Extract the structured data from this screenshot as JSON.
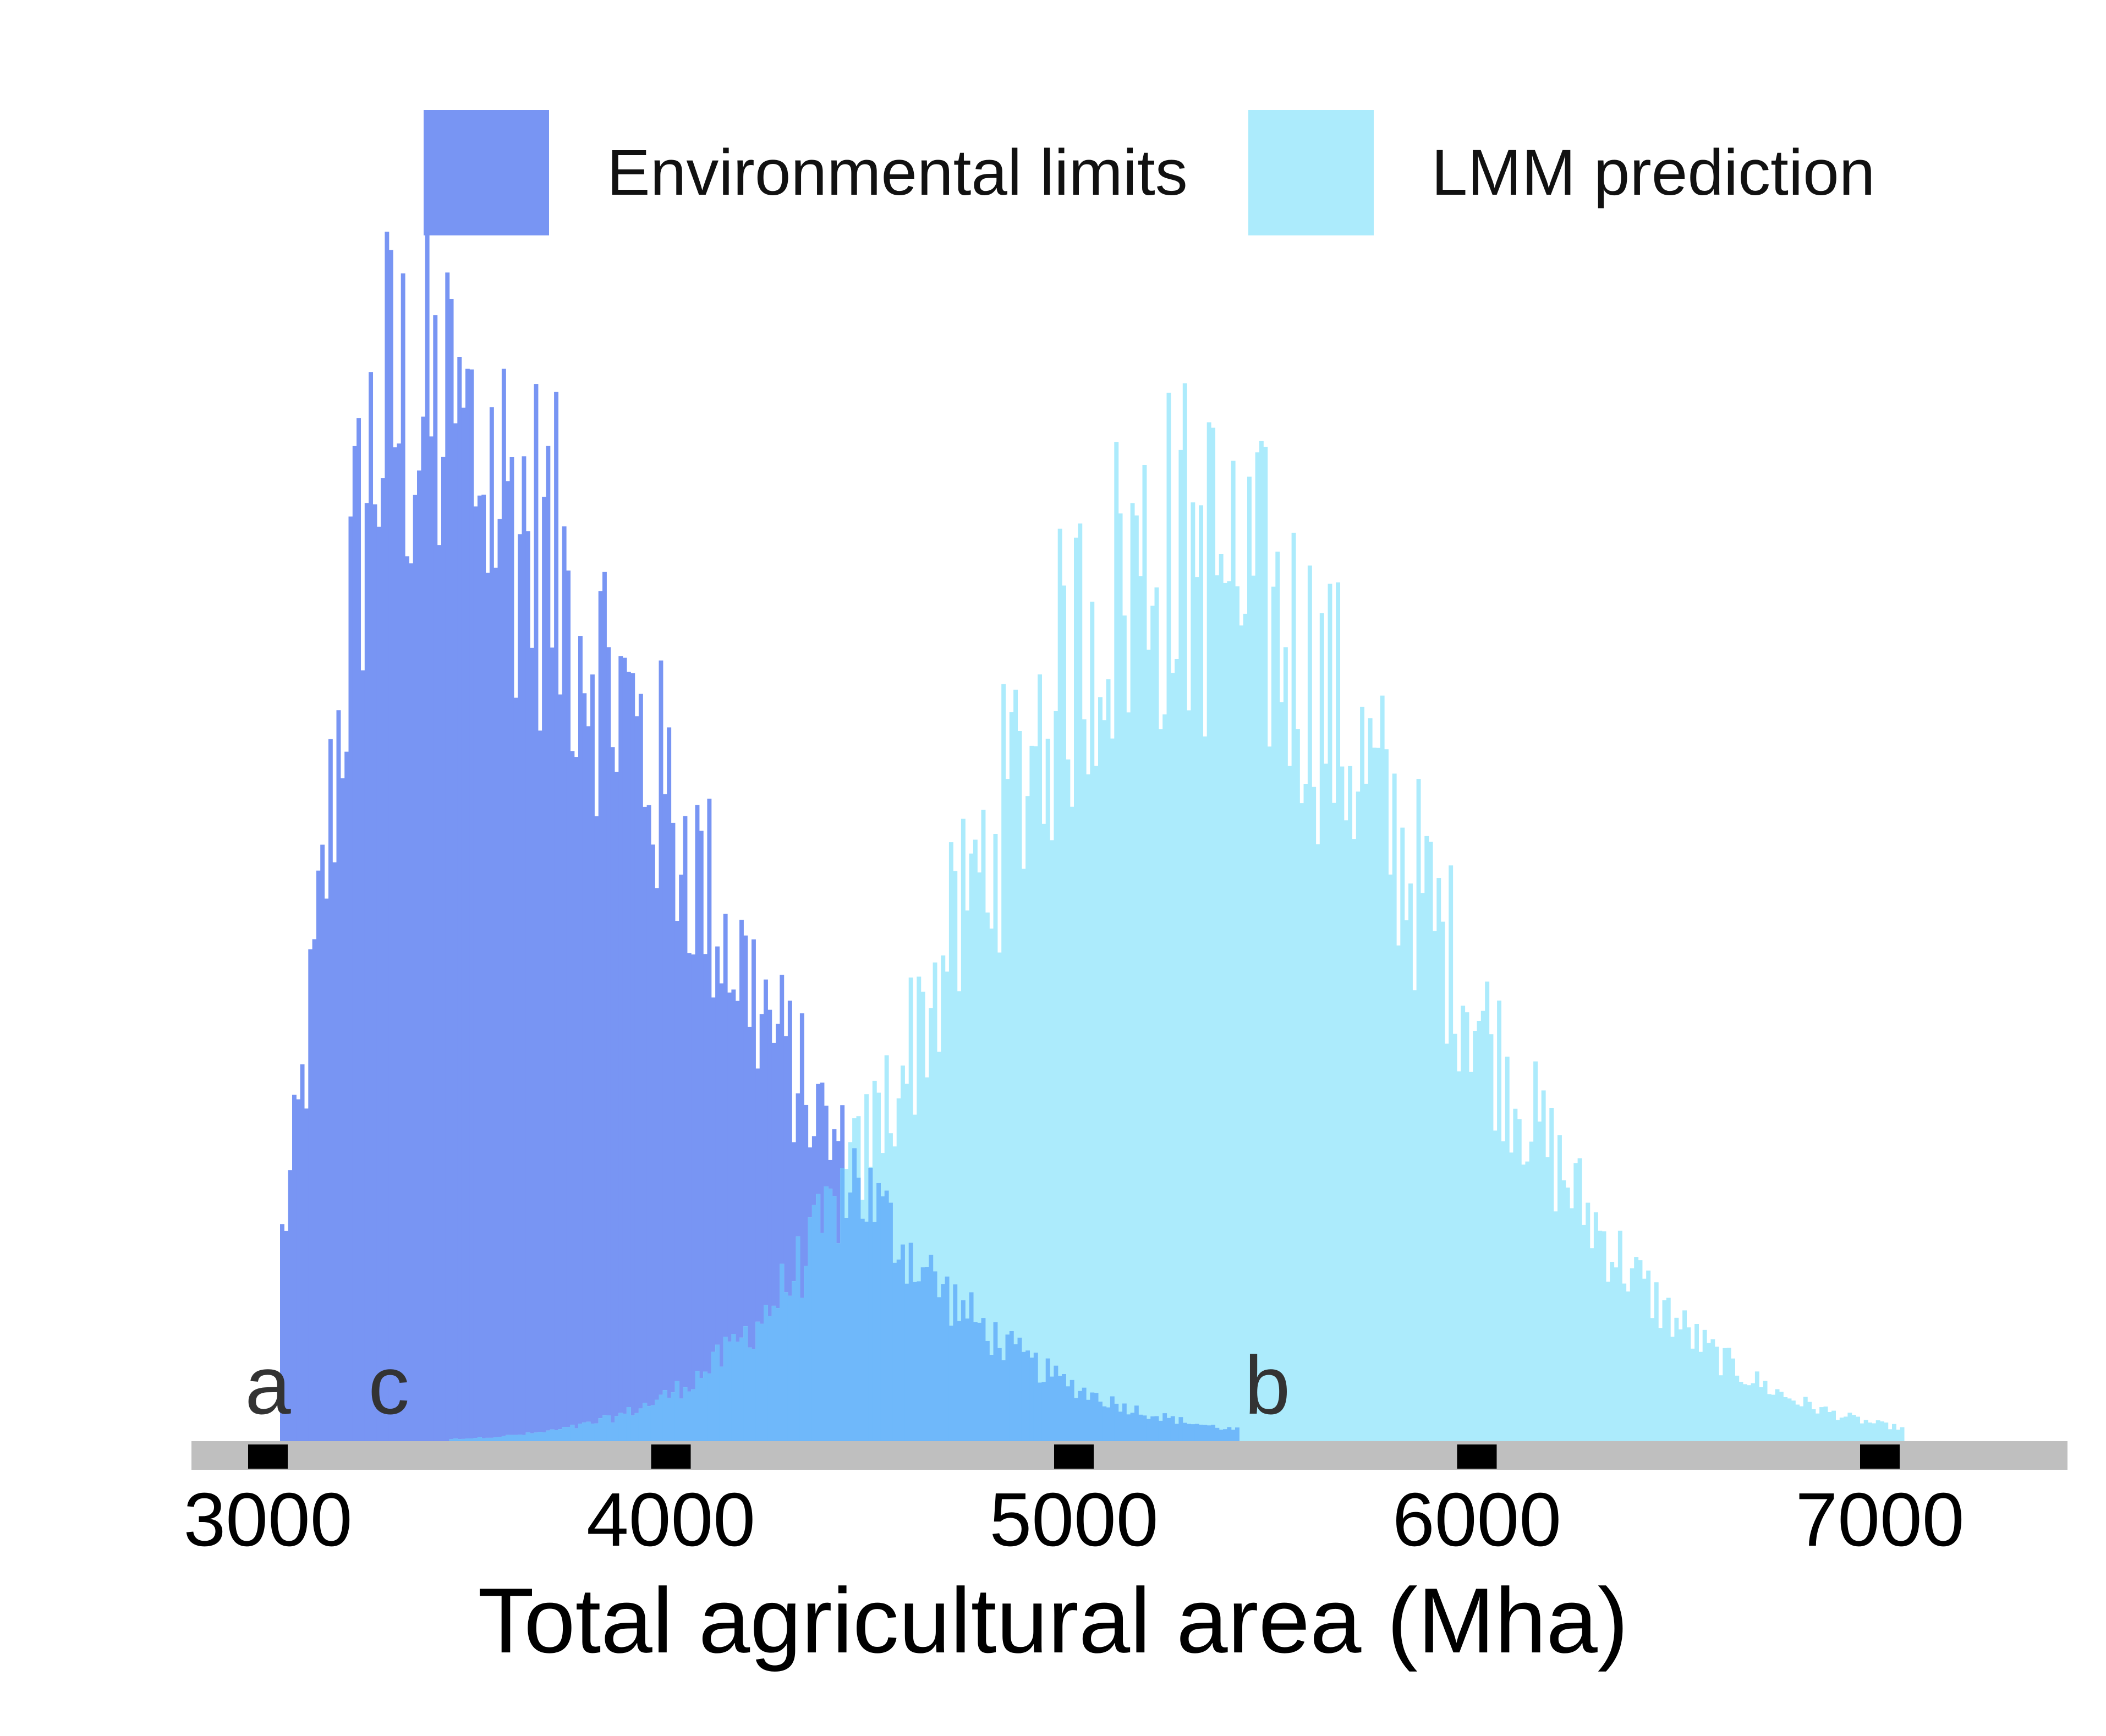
{
  "chart_data": {
    "type": "histogram",
    "xlabel": "Total agricultural area (Mha)",
    "x_ticks": [
      3000,
      4000,
      5000,
      6000,
      7000
    ],
    "xlim": [
      2800,
      7500
    ],
    "legend_position": "top",
    "grid": false,
    "bin_width": 10,
    "series": [
      {
        "name": "Environmental limits",
        "color": "#7895f3",
        "range": [
          3030,
          5400
        ],
        "mode": 3300,
        "sigma_left": 150,
        "sigma_right": 700,
        "peak_count": 1.0
      },
      {
        "name": "LMM prediction",
        "color": "#acebfc",
        "range": [
          3450,
          7050
        ],
        "mode": 5250,
        "sigma_left": 520,
        "sigma_right": 620,
        "peak_count": 0.86
      }
    ],
    "overlap_color": "#6fb8fa",
    "annotations": [
      {
        "text": "a",
        "x": 3000
      },
      {
        "text": "c",
        "x": 3300
      },
      {
        "text": "b",
        "x": 5480
      }
    ],
    "axis_color": "#bfbfbf"
  }
}
